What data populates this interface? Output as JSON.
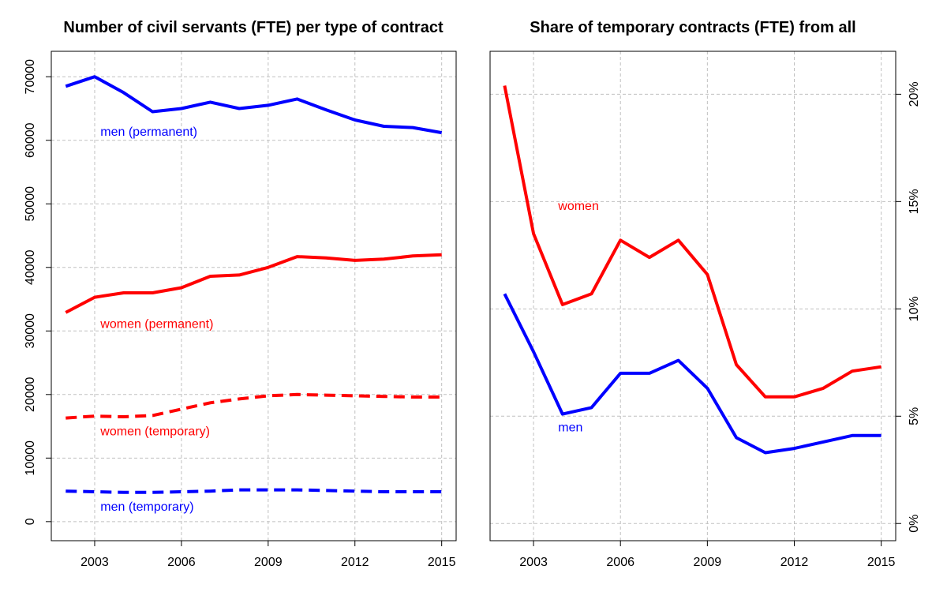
{
  "chart_data": [
    {
      "type": "line",
      "title": "Number of civil servants (FTE) per type of contract",
      "xlim": [
        2001.5,
        2015.5
      ],
      "ylim": [
        -3000,
        74000
      ],
      "x_ticks": [
        "2003",
        "2006",
        "2009",
        "2012",
        "2015"
      ],
      "y_ticks": [
        "0",
        "10000",
        "20000",
        "30000",
        "40000",
        "50000",
        "60000",
        "70000"
      ],
      "y_axis_side": "left",
      "grid": true,
      "x": [
        2002,
        2003,
        2004,
        2005,
        2006,
        2007,
        2008,
        2009,
        2010,
        2011,
        2012,
        2013,
        2014,
        2015
      ],
      "series": [
        {
          "name": "men (permanent)",
          "color": "#0000ff",
          "style": "solid",
          "values": [
            68500,
            70000,
            67500,
            64500,
            65000,
            66000,
            65000,
            65500,
            66500,
            64800,
            63200,
            62200,
            62000,
            61200
          ]
        },
        {
          "name": "women (permanent)",
          "color": "#ff0000",
          "style": "solid",
          "values": [
            32900,
            35300,
            36000,
            36000,
            36800,
            38600,
            38800,
            40000,
            41700,
            41500,
            41100,
            41300,
            41800,
            42000
          ]
        },
        {
          "name": "women (temporary)",
          "color": "#ff0000",
          "style": "dashed",
          "values": [
            16300,
            16600,
            16500,
            16700,
            17700,
            18700,
            19300,
            19800,
            20000,
            19900,
            19800,
            19700,
            19600,
            19600
          ]
        },
        {
          "name": "men (temporary)",
          "color": "#0000ff",
          "style": "dashed",
          "values": [
            4800,
            4700,
            4600,
            4600,
            4700,
            4800,
            5000,
            5000,
            5000,
            4900,
            4800,
            4700,
            4700,
            4700
          ]
        }
      ],
      "annotations": [
        {
          "text": "men (permanent)",
          "color": "#0000ff",
          "x": 2003.2,
          "y": 60700
        },
        {
          "text": "women (permanent)",
          "color": "#ff0000",
          "x": 2003.2,
          "y": 30500
        },
        {
          "text": "women (temporary)",
          "color": "#ff0000",
          "x": 2003.2,
          "y": 13600
        },
        {
          "text": "men (temporary)",
          "color": "#0000ff",
          "x": 2003.2,
          "y": 1700
        }
      ]
    },
    {
      "type": "line",
      "title": "Share of temporary contracts (FTE) from all",
      "xlim": [
        2001.5,
        2015.5
      ],
      "ylim": [
        -0.8,
        22
      ],
      "x_ticks": [
        "2003",
        "2006",
        "2009",
        "2012",
        "2015"
      ],
      "y_ticks": [
        "0%",
        "5%",
        "10%",
        "15%",
        "20%"
      ],
      "y_axis_side": "right",
      "grid": true,
      "x": [
        2002,
        2003,
        2004,
        2005,
        2006,
        2007,
        2008,
        2009,
        2010,
        2011,
        2012,
        2013,
        2014,
        2015
      ],
      "series": [
        {
          "name": "women",
          "color": "#ff0000",
          "style": "solid",
          "values": [
            20.4,
            13.5,
            10.2,
            10.7,
            13.2,
            12.4,
            13.2,
            11.6,
            7.4,
            5.9,
            5.9,
            6.3,
            7.1,
            7.3
          ]
        },
        {
          "name": "men",
          "color": "#0000ff",
          "style": "solid",
          "values": [
            10.7,
            8.0,
            5.1,
            5.4,
            7.0,
            7.0,
            7.6,
            6.3,
            4.0,
            3.3,
            3.5,
            3.8,
            4.1,
            4.1
          ]
        }
      ],
      "annotations": [
        {
          "text": "women",
          "color": "#ff0000",
          "x": 2003.85,
          "y": 14.6
        },
        {
          "text": "men",
          "color": "#0000ff",
          "x": 2003.85,
          "y": 4.3
        }
      ]
    }
  ]
}
